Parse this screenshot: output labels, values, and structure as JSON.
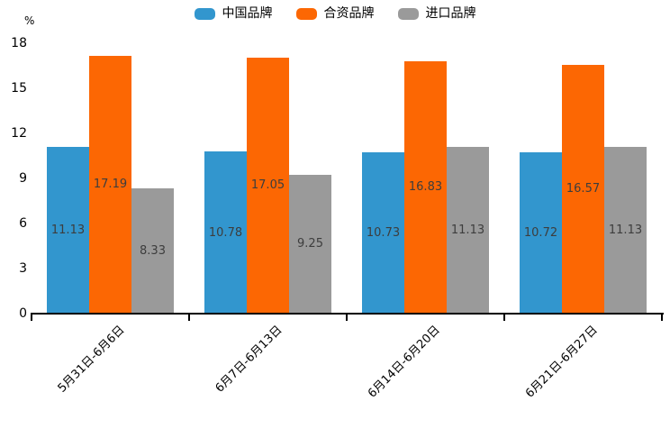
{
  "chart_data": {
    "type": "bar",
    "title": "",
    "xlabel": "",
    "ylabel": "%",
    "ylim": [
      0,
      18
    ],
    "yticks": [
      0,
      3,
      6,
      9,
      12,
      15,
      18
    ],
    "grid": false,
    "legend_position": "top",
    "value_labels": true,
    "categories": [
      "5月31日-6月6日",
      "6月7日-6月13日",
      "6月14日-6月20日",
      "6月21日-6月27日"
    ],
    "series": [
      {
        "key": "china-brand",
        "name": "中国品牌",
        "color": "#3296CE",
        "values": [
          11.13,
          10.78,
          10.73,
          10.72
        ]
      },
      {
        "key": "joint-brand",
        "name": "合资品牌",
        "color": "#FC6703",
        "values": [
          17.19,
          17.05,
          16.83,
          16.57
        ]
      },
      {
        "key": "import-brand",
        "name": "进口品牌",
        "color": "#9A9A9A",
        "values": [
          8.33,
          9.25,
          11.13,
          11.13
        ]
      }
    ],
    "axis_color": "#000000",
    "value_label_color": "#3d3d3d"
  }
}
